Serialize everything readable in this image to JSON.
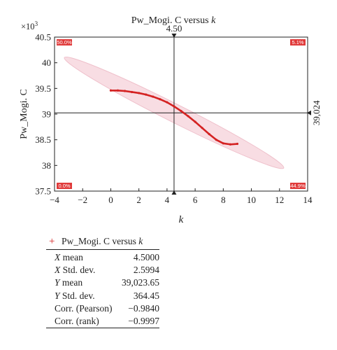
{
  "chart_data": {
    "type": "scatter",
    "title_prefix": "Pw_Mogi. C versus ",
    "title_var": "k",
    "xlabel": "k",
    "ylabel": "Pw_Mogi. C",
    "y_multiplier": "×10",
    "y_multiplier_exp": "3",
    "xlim": [
      -4,
      14
    ],
    "ylim": [
      37.5,
      40.5
    ],
    "x_ticks": [
      "−4",
      "−2",
      "0",
      "2",
      "4",
      "6",
      "8",
      "10",
      "12",
      "14"
    ],
    "x_tick_values": [
      -4,
      -2,
      0,
      2,
      4,
      6,
      8,
      10,
      12,
      14
    ],
    "y_ticks": [
      "37.5",
      "38",
      "38.5",
      "39",
      "39.5",
      "40",
      "40.5"
    ],
    "y_tick_values": [
      37.5,
      38,
      38.5,
      39,
      39.5,
      40,
      40.5
    ],
    "x_marker": 4.5,
    "x_marker_label": "4.50",
    "y_marker": 39.024,
    "y_marker_label": "39,024",
    "quadrants": {
      "top_left": "50.0%",
      "top_right": "5.1%",
      "bottom_left": "0.0%",
      "bottom_right": "44.9%"
    },
    "series": [
      {
        "x": [
          0,
          0.5,
          1,
          1.5,
          2,
          2.5,
          3,
          3.5,
          4,
          4.5,
          5,
          5.5,
          6,
          6.5,
          7,
          7.5,
          8,
          8.5,
          9
        ],
        "y": [
          39.46,
          39.46,
          39.45,
          39.43,
          39.41,
          39.38,
          39.34,
          39.29,
          39.23,
          39.15,
          39.06,
          38.96,
          38.85,
          38.73,
          38.61,
          38.5,
          38.43,
          38.41,
          38.42
        ]
      }
    ],
    "ellipse": {
      "center": [
        4.5,
        39.024
      ],
      "tips": [
        [
          -3.3,
          40.1
        ],
        [
          12.3,
          37.95
        ]
      ],
      "half_width_y": 0.08
    },
    "colors": {
      "series": "#d42222",
      "ellipse_fill": "#f8dde3",
      "ellipse_stroke": "#efc0cb",
      "quad_bg": "#e03a3a"
    }
  },
  "stats": {
    "legend_marker": "+",
    "legend_prefix": "Pw_Mogi. C versus ",
    "legend_var": "k",
    "rows": [
      {
        "label_var": "X",
        "label_rest": " mean",
        "value": "4.5000"
      },
      {
        "label_var": "X",
        "label_rest": " Std. dev.",
        "value": "2.5994"
      },
      {
        "label_var": "Y",
        "label_rest": " mean",
        "value": "39,023.65"
      },
      {
        "label_var": "Y",
        "label_rest": " Std. dev.",
        "value": "364.45"
      },
      {
        "label_var": "",
        "label_rest": "Corr. (Pearson)",
        "value": "−0.9840"
      },
      {
        "label_var": "",
        "label_rest": "Corr. (rank)",
        "value": "−0.9997"
      }
    ]
  }
}
